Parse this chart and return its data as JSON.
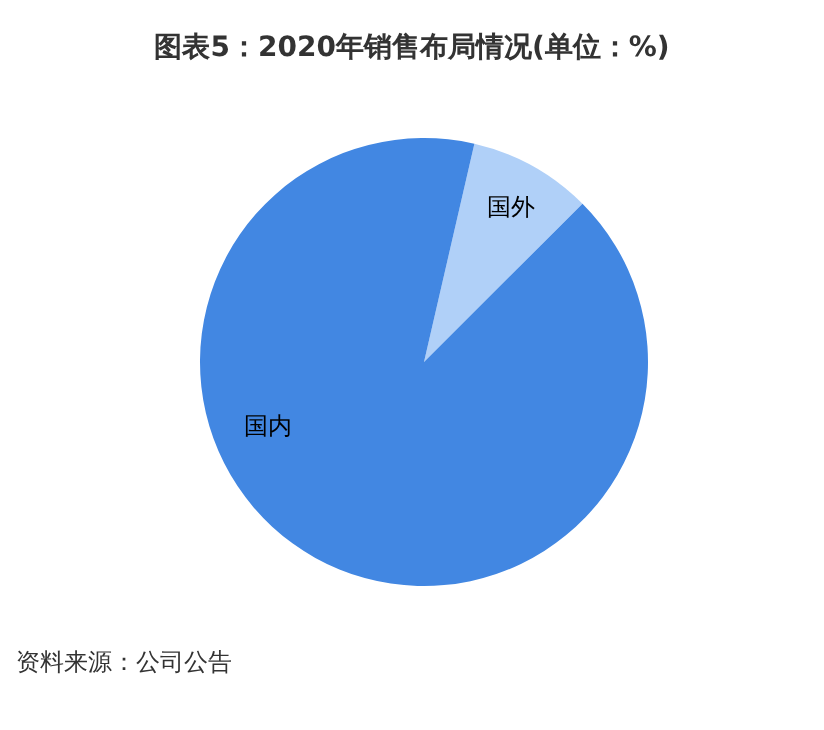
{
  "chart_data": {
    "type": "pie",
    "title": "图表5：2020年销售布局情况(单位：%)",
    "categories": [
      "国外",
      "国内"
    ],
    "values": [
      8.9,
      91.1
    ],
    "colors": [
      "#b0d0f8",
      "#4287e2"
    ],
    "annotations": [
      "资料来源：公司公告"
    ]
  }
}
